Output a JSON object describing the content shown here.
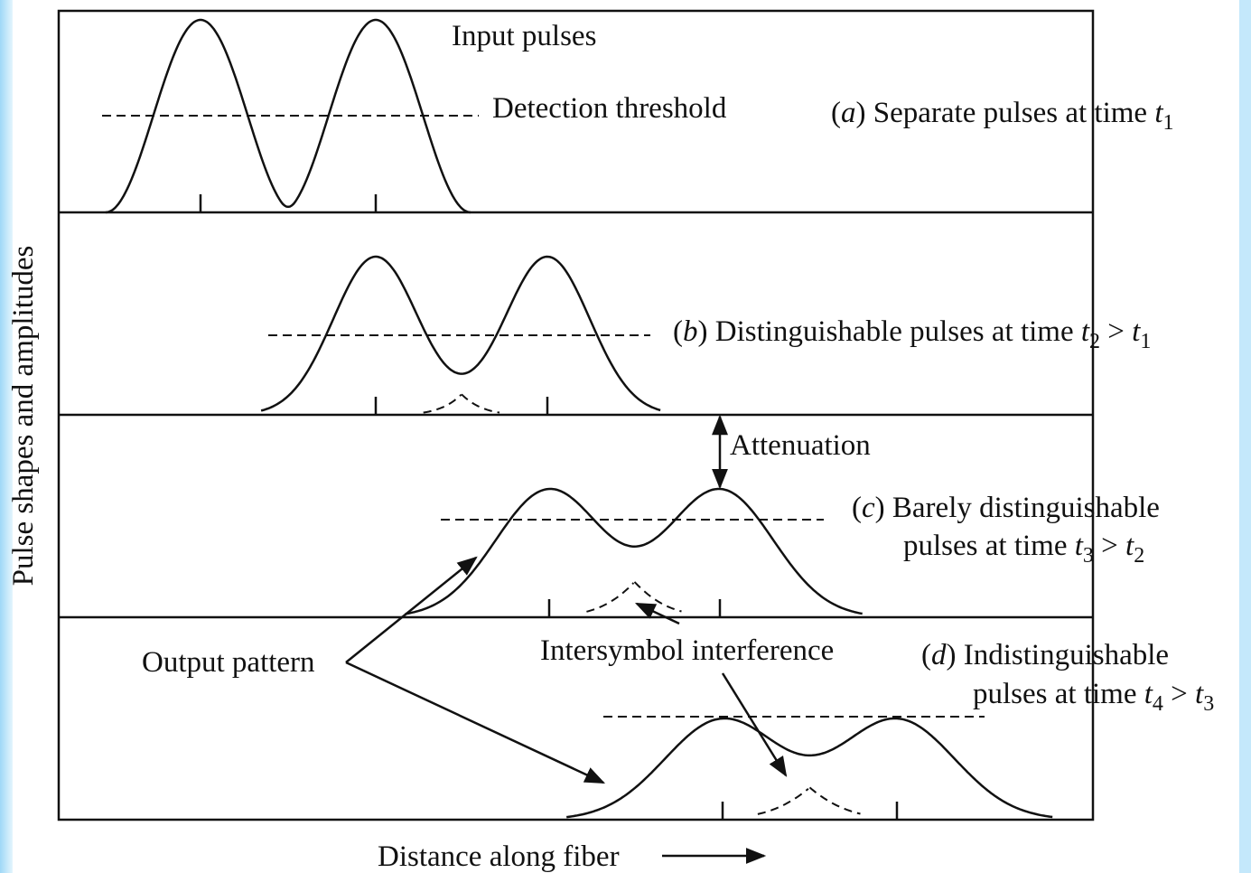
{
  "y_axis_label": "Pulse shapes and amplitudes",
  "x_axis_label": "Distance along fiber",
  "annotations": {
    "input_pulses": "Input pulses",
    "detection_threshold": "Detection threshold",
    "attenuation": "Attenuation",
    "output_pattern": "Output pattern",
    "intersymbol_interference": "Intersymbol interference"
  },
  "panels": [
    {
      "caption": [
        [
          {
            "t": "(",
            "s": "r"
          },
          {
            "t": "a",
            "s": "i"
          },
          {
            "t": ") Separate pulses at time ",
            "s": "r"
          },
          {
            "t": "t",
            "s": "i"
          },
          {
            "t": "1",
            "s": "sub"
          }
        ]
      ]
    },
    {
      "caption": [
        [
          {
            "t": "(",
            "s": "r"
          },
          {
            "t": "b",
            "s": "i"
          },
          {
            "t": ") Distinguishable pulses at time ",
            "s": "r"
          },
          {
            "t": "t",
            "s": "i"
          },
          {
            "t": "2",
            "s": "sub"
          },
          {
            "t": " > ",
            "s": "r"
          },
          {
            "t": "t",
            "s": "i"
          },
          {
            "t": "1",
            "s": "sub"
          }
        ]
      ]
    },
    {
      "caption": [
        [
          {
            "t": "(",
            "s": "r"
          },
          {
            "t": "c",
            "s": "i"
          },
          {
            "t": ") Barely distinguishable",
            "s": "r"
          }
        ],
        [
          {
            "t": "pulses at time ",
            "s": "r"
          },
          {
            "t": "t",
            "s": "i"
          },
          {
            "t": "3",
            "s": "sub"
          },
          {
            "t": " > ",
            "s": "r"
          },
          {
            "t": "t",
            "s": "i"
          },
          {
            "t": "2",
            "s": "sub"
          }
        ]
      ]
    },
    {
      "caption": [
        [
          {
            "t": "(",
            "s": "r"
          },
          {
            "t": "d",
            "s": "i"
          },
          {
            "t": ") Indistinguishable",
            "s": "r"
          }
        ],
        [
          {
            "t": "pulses at time ",
            "s": "r"
          },
          {
            "t": "t",
            "s": "i"
          },
          {
            "t": "4",
            "s": "sub"
          },
          {
            "t": " > ",
            "s": "r"
          },
          {
            "t": "t",
            "s": "i"
          },
          {
            "t": "3",
            "s": "sub"
          }
        ]
      ]
    }
  ]
}
